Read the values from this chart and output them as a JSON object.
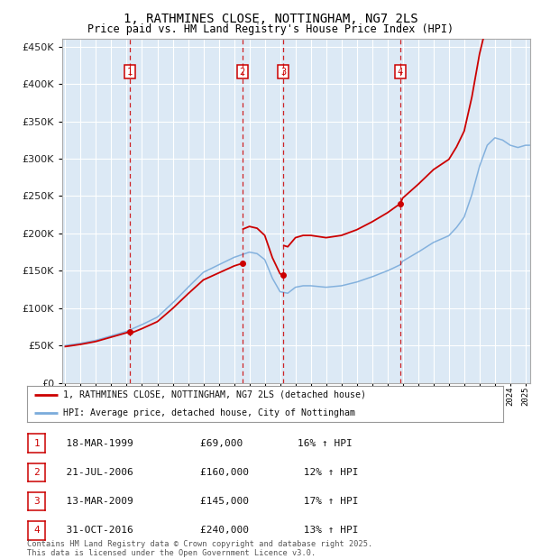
{
  "title": "1, RATHMINES CLOSE, NOTTINGHAM, NG7 2LS",
  "subtitle": "Price paid vs. HM Land Registry's House Price Index (HPI)",
  "title_fontsize": 10,
  "subtitle_fontsize": 8.5,
  "ylim": [
    0,
    460000
  ],
  "yticks": [
    0,
    50000,
    100000,
    150000,
    200000,
    250000,
    300000,
    350000,
    400000,
    450000
  ],
  "xlim_start": 1994.8,
  "xlim_end": 2025.3,
  "bg_color": "#dce9f5",
  "grid_color": "#ffffff",
  "red_line_color": "#cc0000",
  "blue_line_color": "#7aabdb",
  "transactions": [
    {
      "num": 1,
      "date_str": "18-MAR-1999",
      "year": 1999.21,
      "price": 69000,
      "pct": "16%",
      "dir": "↑"
    },
    {
      "num": 2,
      "date_str": "21-JUL-2006",
      "year": 2006.54,
      "price": 160000,
      "pct": "12%",
      "dir": "↑"
    },
    {
      "num": 3,
      "date_str": "13-MAR-2009",
      "year": 2009.2,
      "price": 145000,
      "pct": "17%",
      "dir": "↑"
    },
    {
      "num": 4,
      "date_str": "31-OCT-2016",
      "year": 2016.83,
      "price": 240000,
      "pct": "13%",
      "dir": "↑"
    }
  ],
  "legend_label_red": "1, RATHMINES CLOSE, NOTTINGHAM, NG7 2LS (detached house)",
  "legend_label_blue": "HPI: Average price, detached house, City of Nottingham",
  "footer_text": "Contains HM Land Registry data © Crown copyright and database right 2025.\nThis data is licensed under the Open Government Licence v3.0."
}
